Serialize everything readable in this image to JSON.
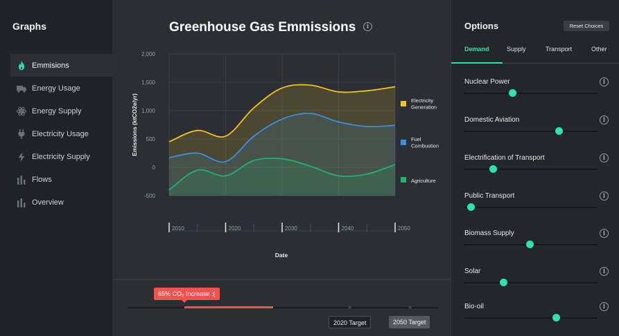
{
  "sidebar": {
    "title": "Graphs",
    "items": [
      {
        "label": "Emmisions",
        "icon": "flame-icon",
        "active": true
      },
      {
        "label": "Energy Usage",
        "icon": "truck-icon",
        "active": false
      },
      {
        "label": "Energy Supply",
        "icon": "atom-icon",
        "active": false
      },
      {
        "label": "Electricity Usage",
        "icon": "plug-icon",
        "active": false
      },
      {
        "label": "Electricity Supply",
        "icon": "lightning-icon",
        "active": false
      },
      {
        "label": "Flows",
        "icon": "bars-icon",
        "active": false
      },
      {
        "label": "Overview",
        "icon": "bars-icon",
        "active": false
      }
    ]
  },
  "main": {
    "title": "Greenhouse Gas Emmissions",
    "timeline": {
      "increase_label": "65% CO₂ Increase :(",
      "target_2020": "2020 Target",
      "target_2050": "2050 Target"
    }
  },
  "chart_data": {
    "type": "area",
    "title": "Greenhouse Gas Emmissions",
    "xlabel": "Date",
    "ylabel": "Emissions (ktCO2e/yr)",
    "x_ticks": [
      "2010",
      "2020",
      "2030",
      "2040",
      "2050"
    ],
    "y_ticks": [
      "2,000",
      "1,500",
      "1,000",
      "500",
      "0",
      "-500"
    ],
    "xlim": [
      2010,
      2050
    ],
    "ylim": [
      -500,
      2000
    ],
    "legend_position": "right",
    "x": [
      2010,
      2015,
      2020,
      2025,
      2030,
      2035,
      2040,
      2045,
      2050
    ],
    "series": [
      {
        "name": "Electricity Generation",
        "color": "#f5c518",
        "values": [
          450,
          650,
          550,
          1050,
          1400,
          1450,
          1330,
          1350,
          1420
        ]
      },
      {
        "name": "Fuel Combustion",
        "color": "#3b8fe3",
        "values": [
          170,
          250,
          100,
          550,
          850,
          950,
          800,
          720,
          740
        ]
      },
      {
        "name": "Agriculture",
        "color": "#1db56b",
        "values": [
          -400,
          -50,
          -150,
          120,
          150,
          20,
          -150,
          -120,
          50
        ]
      }
    ],
    "grid": true
  },
  "options": {
    "title": "Options",
    "reset_label": "Reset Choices",
    "tabs": [
      {
        "label": "Demand",
        "active": true
      },
      {
        "label": "Supply",
        "active": false
      },
      {
        "label": "Transport",
        "active": false
      },
      {
        "label": "Other",
        "active": false
      }
    ],
    "sliders": [
      {
        "label": "Nuclear Power",
        "level": 0.35
      },
      {
        "label": "Domestic Aviation",
        "level": 0.72
      },
      {
        "label": "Electrification of Transport",
        "level": 0.2
      },
      {
        "label": "Public Transport",
        "level": 0.02
      },
      {
        "label": "Biomass Supply",
        "level": 0.49
      },
      {
        "label": "Solar",
        "level": 0.28
      },
      {
        "label": "Bio-oil",
        "level": 0.7
      }
    ]
  }
}
